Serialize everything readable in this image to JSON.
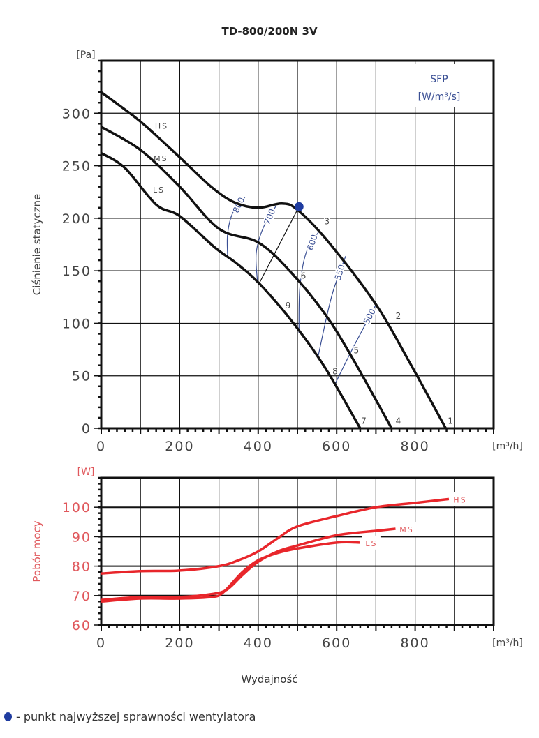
{
  "title": "TD-800/200N 3V",
  "legend_note": "- punkt najwyższej sprawności wentylatora",
  "colors": {
    "curve": "#111111",
    "power": "#e8262b",
    "sfp": "#3a4f94",
    "bep": "#1f3ca0",
    "grid": "#111111",
    "power_label": "#e0585c"
  },
  "chart_data": [
    {
      "type": "line",
      "title": "TD-800/200N 3V",
      "xlabel": "[m³/h]",
      "ylabel": "Ciśnienie statyczne",
      "yunit": "[Pa]",
      "xlim": [
        0,
        1000
      ],
      "ylim": [
        0,
        350
      ],
      "xticks": [
        0,
        200,
        400,
        600,
        800
      ],
      "yticks": [
        0,
        50,
        100,
        150,
        200,
        250,
        300
      ],
      "grid": true,
      "series": [
        {
          "name": "HS",
          "label_at": [
            154,
            288
          ],
          "points": [
            [
              0,
              320
            ],
            [
              100,
              292
            ],
            [
              200,
              258
            ],
            [
              280,
              230
            ],
            [
              340,
              215
            ],
            [
              400,
              210
            ],
            [
              460,
              214
            ],
            [
              500,
              208
            ],
            [
              580,
              177
            ],
            [
              700,
              118
            ],
            [
              790,
              60
            ],
            [
              878,
              0
            ]
          ]
        },
        {
          "name": "MS",
          "label_at": [
            152,
            257
          ],
          "points": [
            [
              0,
              287
            ],
            [
              100,
              265
            ],
            [
              200,
              230
            ],
            [
              300,
              190
            ],
            [
              400,
              177
            ],
            [
              480,
              150
            ],
            [
              570,
              109
            ],
            [
              640,
              67
            ],
            [
              740,
              0
            ]
          ]
        },
        {
          "name": "LS",
          "label_at": [
            147,
            227
          ],
          "points": [
            [
              0,
              262
            ],
            [
              60,
              248
            ],
            [
              140,
              213
            ],
            [
              200,
              202
            ],
            [
              290,
              172
            ],
            [
              345,
              157
            ],
            [
              405,
              137
            ],
            [
              490,
              100
            ],
            [
              570,
              58
            ],
            [
              660,
              0
            ]
          ]
        }
      ],
      "sfp": {
        "title": "SFP",
        "unit": "[W/m³/s]",
        "isolines": [
          {
            "value": "800",
            "points": [
              [
                366,
                220
              ],
              [
                335,
                205
              ],
              [
                322,
                185
              ],
              [
                322,
                164
              ]
            ]
          },
          {
            "value": "700",
            "points": [
              [
                446,
                212
              ],
              [
                413,
                191
              ],
              [
                395,
                167
              ],
              [
                398,
                140
              ]
            ]
          },
          {
            "value": "600",
            "points": [
              [
                554,
                187
              ],
              [
                522,
                167
              ],
              [
                506,
                133
              ],
              [
                504,
                91
              ]
            ]
          },
          {
            "value": "550",
            "points": [
              [
                623,
                164
              ],
              [
                593,
                133
              ],
              [
                575,
                107
              ],
              [
                552,
                67
              ]
            ]
          },
          {
            "value": "500",
            "points": [
              [
                699,
                117
              ],
              [
                669,
                96
              ],
              [
                634,
                71
              ],
              [
                593,
                40
              ]
            ]
          }
        ]
      },
      "best_efficiency_point": {
        "x": 504,
        "y": 211,
        "line_to": [
          404,
          139
        ]
      },
      "point_labels": [
        {
          "text": "1",
          "x": 890,
          "y": 7
        },
        {
          "text": "2",
          "x": 757,
          "y": 107
        },
        {
          "text": "3",
          "x": 575,
          "y": 197
        },
        {
          "text": "4",
          "x": 757,
          "y": 7
        },
        {
          "text": "5",
          "x": 650,
          "y": 74
        },
        {
          "text": "6",
          "x": 515,
          "y": 145
        },
        {
          "text": "7",
          "x": 669,
          "y": 7
        },
        {
          "text": "8",
          "x": 596,
          "y": 54
        },
        {
          "text": "9",
          "x": 476,
          "y": 117
        }
      ]
    },
    {
      "type": "line",
      "xlabel": "[m³/h]",
      "ylabel": "Pobór mocy",
      "yunit": "[W]",
      "xlim": [
        0,
        1000
      ],
      "ylim": [
        60,
        110
      ],
      "xticks": [
        0,
        200,
        400,
        600,
        800
      ],
      "yticks": [
        60,
        70,
        80,
        90,
        100
      ],
      "grid": true,
      "series": [
        {
          "name": "HS",
          "points": [
            [
              0,
              77.5
            ],
            [
              100,
              78.3
            ],
            [
              200,
              78.5
            ],
            [
              300,
              80
            ],
            [
              350,
              82
            ],
            [
              400,
              85
            ],
            [
              450,
              89.5
            ],
            [
              500,
              93.5
            ],
            [
              600,
              97
            ],
            [
              700,
              100
            ],
            [
              800,
              101.5
            ],
            [
              886,
              102.8
            ]
          ]
        },
        {
          "name": "MS",
          "points": [
            [
              0,
              68.5
            ],
            [
              100,
              69.5
            ],
            [
              200,
              69.5
            ],
            [
              280,
              70.5
            ],
            [
              320,
              72
            ],
            [
              360,
              77
            ],
            [
              400,
              81.5
            ],
            [
              450,
              85
            ],
            [
              500,
              87
            ],
            [
              600,
              90.5
            ],
            [
              700,
              92
            ],
            [
              750,
              92.7
            ]
          ]
        },
        {
          "name": "LS",
          "points": [
            [
              0,
              68
            ],
            [
              100,
              69
            ],
            [
              200,
              69
            ],
            [
              280,
              69.5
            ],
            [
              310,
              71
            ],
            [
              360,
              78
            ],
            [
              400,
              82
            ],
            [
              450,
              84.5
            ],
            [
              500,
              86
            ],
            [
              600,
              88
            ],
            [
              660,
              88
            ]
          ]
        }
      ]
    }
  ],
  "shared_xlabel": "Wydajność"
}
